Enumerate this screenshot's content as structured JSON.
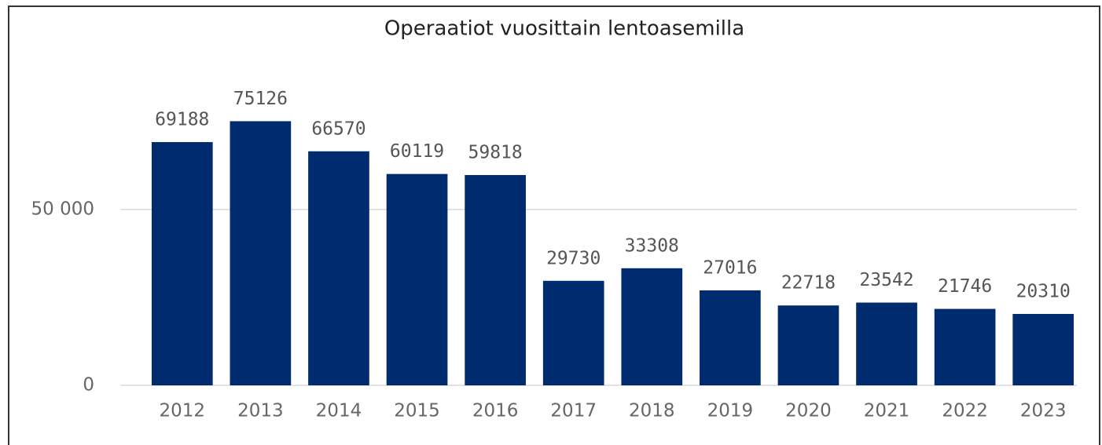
{
  "chart_data": {
    "type": "bar",
    "title": "Operaatiot vuosittain lentoasemilla",
    "categories": [
      "2012",
      "2013",
      "2014",
      "2015",
      "2016",
      "2017",
      "2018",
      "2019",
      "2020",
      "2021",
      "2022",
      "2023"
    ],
    "values": [
      69188,
      75126,
      66570,
      60119,
      59818,
      29730,
      33308,
      27016,
      22718,
      23542,
      21746,
      20310
    ],
    "color": "#002b6f",
    "ylim": [
      0,
      80000
    ],
    "yticks": [
      0,
      {
        "value": 50000,
        "label": "50 000"
      }
    ],
    "grid": true
  }
}
